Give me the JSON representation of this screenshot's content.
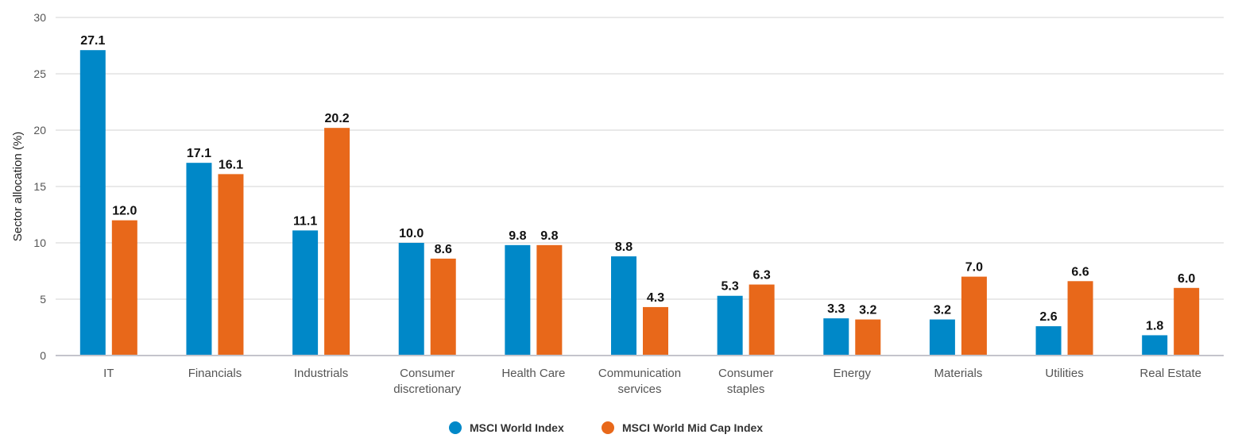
{
  "chart_data": {
    "type": "bar",
    "title": "",
    "xlabel": "",
    "ylabel": "Sector allocation (%)",
    "ylim": [
      0,
      30
    ],
    "yticks": [
      0,
      5,
      10,
      15,
      20,
      25,
      30
    ],
    "grid": true,
    "legend_position": "bottom-center",
    "categories": [
      [
        "IT"
      ],
      [
        "Financials"
      ],
      [
        "Industrials"
      ],
      [
        "Consumer",
        "discretionary"
      ],
      [
        "Health Care"
      ],
      [
        "Communication",
        "services"
      ],
      [
        "Consumer",
        "staples"
      ],
      [
        "Energy"
      ],
      [
        "Materials"
      ],
      [
        "Utilities"
      ],
      [
        "Real Estate"
      ]
    ],
    "series": [
      {
        "name": "MSCI World Index",
        "color": "#0088c8",
        "values": [
          27.1,
          17.1,
          11.1,
          10.0,
          9.8,
          8.8,
          5.3,
          3.3,
          3.2,
          2.6,
          1.8
        ]
      },
      {
        "name": "MSCI World Mid Cap Index",
        "color": "#e8681a",
        "values": [
          12.0,
          16.1,
          20.2,
          8.6,
          9.8,
          4.3,
          6.3,
          3.2,
          7.0,
          6.6,
          6.0
        ]
      }
    ]
  }
}
